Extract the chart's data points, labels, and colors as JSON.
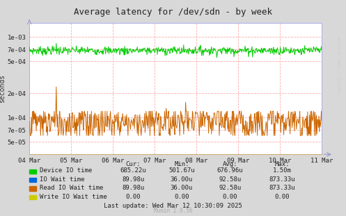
{
  "title": "Average latency for /dev/sdn - by week",
  "ylabel": "seconds",
  "bg_color": "#d8d8d8",
  "plot_bg_color": "#ffffff",
  "grid_color": "#ffaaaa",
  "axis_color": "#aaaaaa",
  "watermark": "RRDTOOL / TOBI OETIKER",
  "munin_version": "Munin 2.0.56",
  "x_ticks": [
    "04 Mar",
    "05 Mar",
    "06 Mar",
    "07 Mar",
    "08 Mar",
    "09 Mar",
    "10 Mar",
    "11 Mar"
  ],
  "yticks": [
    5e-05,
    7e-05,
    0.0001,
    0.0002,
    0.0005,
    0.0007,
    0.001
  ],
  "ytick_labels": [
    "5e-05",
    "7e-05",
    "1e-04",
    "2e-04",
    "5e-04",
    "7e-04",
    "1e-03"
  ],
  "ylim_min": 3.5e-05,
  "ylim_max": 0.0015,
  "green_color": "#00cc00",
  "orange_color": "#cc6600",
  "blue_color": "#0066dd",
  "yellow_color": "#cccc00",
  "legend_labels": [
    "Device IO time",
    "IO Wait time",
    "Read IO Wait time",
    "Write IO Wait time"
  ],
  "legend_colors": [
    "#00cc00",
    "#0066dd",
    "#cc6600",
    "#cccc00"
  ],
  "col_headers": [
    "Cur:",
    "Min:",
    "Avg:",
    "Max:"
  ],
  "cur_vals": [
    "685.22u",
    "89.98u",
    "89.98u",
    "0.00"
  ],
  "min_vals": [
    "501.67u",
    "36.00u",
    "36.00u",
    "0.00"
  ],
  "avg_vals": [
    "676.96u",
    "92.58u",
    "92.58u",
    "0.00"
  ],
  "max_vals": [
    "1.50m",
    "873.33u",
    "873.33u",
    "0.00"
  ],
  "last_update": "Last update: Wed Mar 12 10:30:09 2025",
  "n_points": 600,
  "green_base": 0.00068,
  "orange_base": 9e-05,
  "spike_i1": 55,
  "spike_v1_orange": 0.00024,
  "spike_i2": 58,
  "spike_v2_orange": 0.00011,
  "spike_i3": 280,
  "spike_v3_orange": 0.00013,
  "spike_i4": 320,
  "spike_v4_orange": 0.000155,
  "spike_i5": 325,
  "spike_v5_orange": 0.00012
}
